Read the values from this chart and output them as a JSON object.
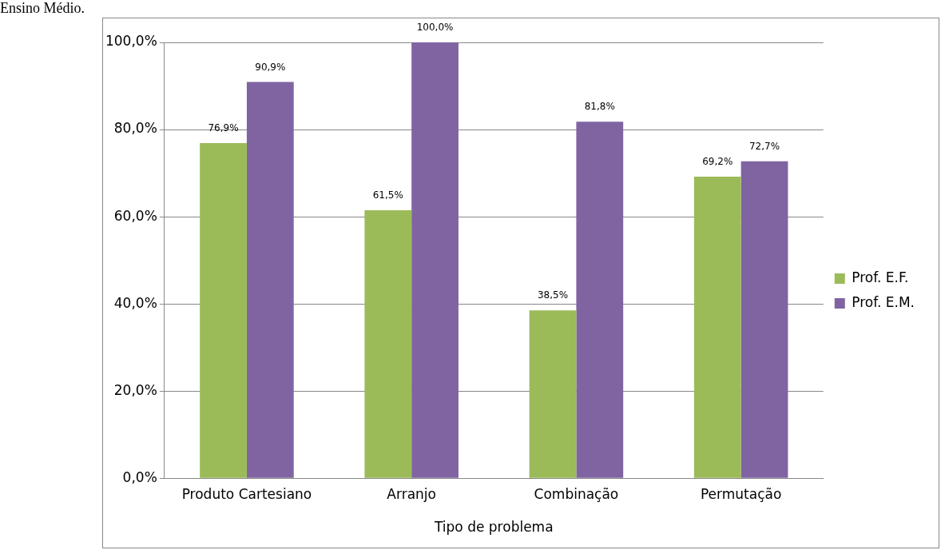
{
  "chart_data": {
    "type": "bar",
    "xlabel": "Tipo de problema",
    "annotations": [
      "Ensino Médio."
    ],
    "categories": [
      "Produto Cartesiano",
      "Arranjo",
      "Combinação",
      "Permutação"
    ],
    "series": [
      {
        "name": "Prof. E.F.",
        "color": "#9bbb59",
        "values": [
          76.9,
          61.5,
          38.5,
          69.2
        ],
        "value_labels": [
          "76,9%",
          "61,5%",
          "38,5%",
          "69,2%"
        ]
      },
      {
        "name": "Prof. E.M.",
        "color": "#8064a2",
        "values": [
          90.9,
          100,
          81.8,
          72.7
        ],
        "value_labels": [
          "90,9%",
          "100,0%",
          "81,8%",
          "72,7%"
        ]
      }
    ],
    "ylim": [
      0,
      100
    ],
    "yticks": [
      {
        "value": 0,
        "label": "0,0%"
      },
      {
        "value": 20,
        "label": "20,0%"
      },
      {
        "value": 40,
        "label": "40,0%"
      },
      {
        "value": 60,
        "label": "60,0%"
      },
      {
        "value": 80,
        "label": "80,0%"
      },
      {
        "value": 100,
        "label": "100,0%"
      }
    ],
    "grid": "y",
    "legend": "right"
  }
}
